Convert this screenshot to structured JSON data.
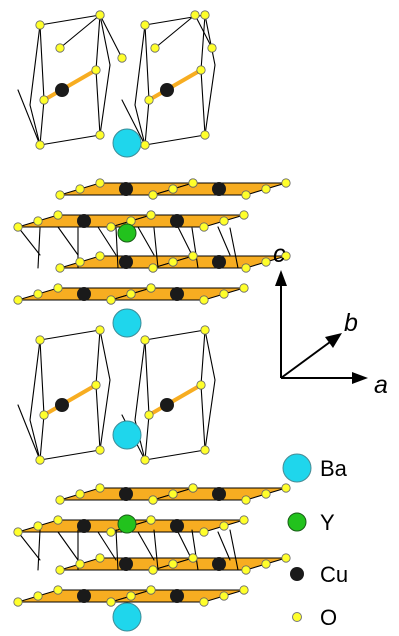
{
  "axes": {
    "c": "c",
    "b": "b",
    "a": "a"
  },
  "legend": [
    {
      "label": "Ba",
      "color": "#1fd6ec",
      "kind": "large"
    },
    {
      "label": "Y",
      "color": "#22c21d",
      "kind": "medium"
    },
    {
      "label": "Cu",
      "color": "#1a1a1a",
      "kind": "small"
    },
    {
      "label": "O",
      "color": "#ffff2b",
      "kind": "tiny"
    }
  ],
  "colors": {
    "plaquette": "#f7ad21",
    "bond": "#000000",
    "chain": "#f7ad21"
  },
  "structure": {
    "unit_cells": 2,
    "chains_per_cell": 2,
    "planes_per_cell": 2
  }
}
